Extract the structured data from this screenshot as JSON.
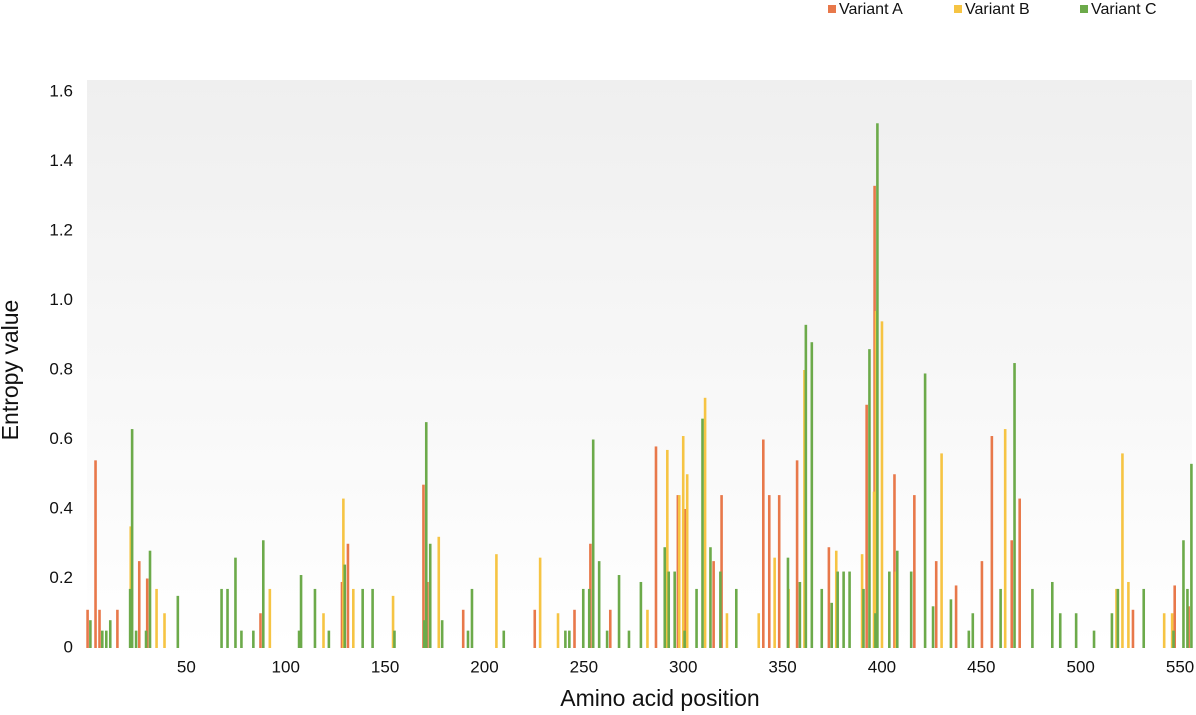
{
  "chart_data": {
    "type": "bar",
    "x_label": "Amino acid position",
    "y_label": "Entropy value",
    "xlim": [
      0,
      556
    ],
    "xticks": [
      50,
      100,
      150,
      200,
      250,
      300,
      350,
      400,
      450,
      500,
      550
    ],
    "ylim": [
      0,
      1.6
    ],
    "yticks": [
      0,
      0.2,
      0.4,
      0.6,
      0.8,
      {
        "value": 1,
        "label": "1.0"
      },
      1.2,
      1.4,
      1.6
    ],
    "legend": "top-right",
    "x": [
      1,
      5,
      7,
      9,
      11,
      16,
      21,
      22,
      24,
      27,
      29,
      31,
      35,
      39,
      45,
      67,
      70,
      74,
      77,
      83,
      88,
      92,
      106,
      107,
      114,
      119,
      121,
      129,
      132,
      134,
      138,
      143,
      154,
      169,
      170,
      172,
      177,
      178,
      190,
      191,
      193,
      206,
      209,
      226,
      228,
      237,
      240,
      242,
      246,
      249,
      252,
      254,
      257,
      261,
      264,
      267,
      272,
      278,
      282,
      287,
      290,
      292,
      295,
      298,
      300,
      302,
      306,
      309,
      311,
      313,
      316,
      318,
      320,
      322,
      326,
      338,
      341,
      344,
      346,
      349,
      352,
      353,
      358,
      361,
      364,
      369,
      374,
      377,
      380,
      383,
      390,
      393,
      396,
      397,
      400,
      403,
      407,
      414,
      417,
      421,
      425,
      428,
      430,
      434,
      438,
      443,
      445,
      451,
      456,
      459,
      462,
      466,
      470,
      475,
      485,
      489,
      497,
      506,
      515,
      518,
      521,
      524,
      527,
      531,
      542,
      546,
      548,
      551,
      553,
      555
    ],
    "series": [
      {
        "name": "Variant A",
        "color": "#e8784a",
        "values": [
          0.11,
          0.54,
          0.11,
          null,
          null,
          0.11,
          null,
          null,
          null,
          0.25,
          null,
          0.2,
          null,
          null,
          null,
          null,
          null,
          null,
          null,
          null,
          0.1,
          null,
          null,
          null,
          null,
          null,
          null,
          0.19,
          0.3,
          null,
          null,
          null,
          null,
          null,
          0.47,
          0.19,
          null,
          null,
          0.11,
          null,
          null,
          null,
          null,
          0.11,
          null,
          null,
          null,
          null,
          0.11,
          null,
          null,
          0.3,
          null,
          null,
          0.11,
          null,
          null,
          null,
          null,
          0.58,
          null,
          null,
          null,
          0.44,
          null,
          0.4,
          null,
          null,
          null,
          null,
          0.25,
          null,
          0.44,
          null,
          null,
          null,
          0.6,
          0.44,
          null,
          0.44,
          null,
          null,
          0.54,
          null,
          null,
          null,
          0.29,
          null,
          null,
          null,
          null,
          0.7,
          null,
          1.33,
          null,
          null,
          0.5,
          null,
          0.44,
          null,
          null,
          0.25,
          null,
          null,
          0.18,
          null,
          null,
          0.25,
          0.61,
          null,
          null,
          0.31,
          0.43,
          null,
          null,
          null,
          null,
          null,
          null,
          null,
          null,
          null,
          0.11,
          null,
          null,
          null,
          0.18,
          null,
          null,
          0.12
        ]
      },
      {
        "name": "Variant B",
        "color": "#f6c443",
        "values": [
          null,
          null,
          null,
          null,
          null,
          null,
          null,
          0.35,
          null,
          null,
          null,
          null,
          0.17,
          0.1,
          null,
          null,
          null,
          null,
          null,
          null,
          null,
          0.17,
          null,
          null,
          null,
          0.1,
          null,
          0.43,
          null,
          0.17,
          null,
          null,
          0.15,
          null,
          null,
          null,
          0.32,
          null,
          null,
          null,
          null,
          0.27,
          null,
          null,
          0.26,
          0.1,
          null,
          null,
          null,
          null,
          null,
          null,
          null,
          null,
          null,
          null,
          null,
          null,
          0.11,
          null,
          null,
          0.57,
          null,
          0.44,
          0.61,
          0.5,
          null,
          null,
          0.72,
          null,
          null,
          null,
          null,
          0.1,
          null,
          0.1,
          null,
          null,
          0.26,
          null,
          null,
          0.17,
          null,
          0.8,
          null,
          null,
          null,
          0.28,
          null,
          null,
          0.27,
          null,
          0.45,
          0.97,
          0.94,
          null,
          0.22,
          null,
          null,
          null,
          null,
          null,
          0.56,
          null,
          null,
          null,
          null,
          null,
          null,
          null,
          0.63,
          null,
          null,
          null,
          null,
          null,
          null,
          null,
          null,
          0.17,
          0.56,
          0.19,
          null,
          null,
          0.1,
          0.1,
          null,
          null,
          null,
          null
        ]
      },
      {
        "name": "Variant C",
        "color": "#6caa4a",
        "values": [
          0.08,
          null,
          0.05,
          0.05,
          0.08,
          null,
          0.17,
          0.63,
          0.05,
          null,
          0.05,
          0.28,
          null,
          null,
          0.15,
          0.17,
          0.17,
          0.26,
          0.05,
          0.05,
          0.31,
          null,
          0.05,
          0.21,
          0.17,
          null,
          0.05,
          0.24,
          null,
          null,
          0.17,
          0.17,
          0.05,
          0.08,
          0.65,
          0.3,
          null,
          0.08,
          null,
          0.05,
          0.17,
          null,
          0.05,
          null,
          null,
          null,
          0.05,
          0.05,
          null,
          0.17,
          0.17,
          0.6,
          0.25,
          0.05,
          null,
          0.21,
          0.05,
          0.19,
          null,
          null,
          0.29,
          0.22,
          0.22,
          null,
          0.05,
          null,
          0.17,
          0.66,
          null,
          0.29,
          null,
          0.22,
          null,
          null,
          0.17,
          null,
          null,
          null,
          null,
          null,
          0.26,
          null,
          0.19,
          0.93,
          0.88,
          0.17,
          0.13,
          0.22,
          0.22,
          0.22,
          0.17,
          0.86,
          0.1,
          1.51,
          null,
          0.22,
          0.28,
          0.22,
          null,
          0.79,
          0.12,
          null,
          null,
          0.14,
          null,
          0.05,
          0.1,
          null,
          null,
          0.17,
          null,
          0.82,
          null,
          0.17,
          0.19,
          0.1,
          0.1,
          0.05,
          0.1,
          0.17,
          null,
          null,
          null,
          0.17,
          null,
          0.05,
          null,
          0.31,
          0.17,
          0.53
        ]
      }
    ]
  }
}
